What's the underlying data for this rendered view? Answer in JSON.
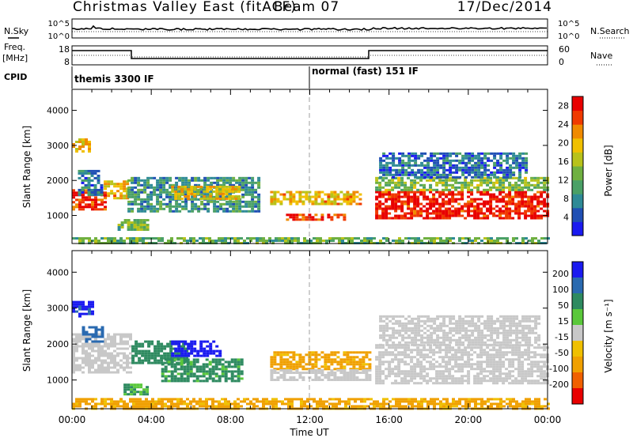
{
  "header": {
    "station": "Christmas Valley East (fitACF)",
    "beam": "Beam 07",
    "date": "17/Dec/2014"
  },
  "strips": {
    "nsky_label": "N.Sky",
    "nsearch_label": "N.Search",
    "freq_label_1": "Freq.",
    "freq_label_2": "[MHz]",
    "nave_label": "Nave",
    "cpid_label": "CPID",
    "noise_ticks": [
      "10^5",
      "10^0"
    ],
    "freq_ticks": [
      "18",
      "8"
    ],
    "nave_ticks": [
      "60",
      "0"
    ],
    "cpid_segments": [
      {
        "label": "themis 3300 IF",
        "start_hour": 0
      },
      {
        "label": "normal (fast) 151 IF",
        "start_hour": 12
      }
    ]
  },
  "chart_data": [
    {
      "type": "heatmap",
      "panel": "power",
      "xlabel": "",
      "ylabel": "Slant Range [km]",
      "xlim": [
        0,
        24
      ],
      "ylim": [
        200,
        4600
      ],
      "yticks": [
        1000,
        2000,
        3000,
        4000
      ],
      "colorbar": {
        "label": "Power [dB]",
        "ticks": [
          4,
          8,
          12,
          16,
          20,
          24,
          28
        ],
        "range": [
          0,
          30
        ],
        "colors": [
          "#1a1af0",
          "#1f4fb4",
          "#2e8a96",
          "#4aa066",
          "#6fb040",
          "#b8c21a",
          "#f0c000",
          "#f08a00",
          "#f03a00",
          "#e80000"
        ]
      },
      "regions": [
        {
          "t0": 0.0,
          "t1": 1.6,
          "r0": 1150,
          "r1": 1750,
          "v": 27
        },
        {
          "t0": 1.6,
          "t1": 2.8,
          "r0": 1500,
          "r1": 2000,
          "v": 20
        },
        {
          "t0": 0.3,
          "t1": 1.5,
          "r0": 1600,
          "r1": 2300,
          "v": 7
        },
        {
          "t0": 2.8,
          "t1": 9.5,
          "r0": 1100,
          "r1": 2100,
          "v": 9
        },
        {
          "t0": 5.0,
          "t1": 8.5,
          "r0": 1450,
          "r1": 1850,
          "v": 19
        },
        {
          "t0": 2.3,
          "t1": 3.8,
          "r0": 600,
          "r1": 900,
          "v": 13
        },
        {
          "t0": 0.0,
          "t1": 0.8,
          "r0": 2800,
          "r1": 3200,
          "v": 19
        },
        {
          "t0": 10.0,
          "t1": 14.5,
          "r0": 1300,
          "r1": 1700,
          "v": 20
        },
        {
          "t0": 10.8,
          "t1": 13.8,
          "r0": 850,
          "r1": 1050,
          "v": 26
        },
        {
          "t0": 15.3,
          "t1": 24.0,
          "r0": 950,
          "r1": 1700,
          "v": 28
        },
        {
          "t0": 15.3,
          "t1": 24.0,
          "r0": 1700,
          "r1": 2100,
          "v": 14
        },
        {
          "t0": 15.5,
          "t1": 23.0,
          "r0": 2100,
          "r1": 2800,
          "v": 6
        },
        {
          "t0": 0.0,
          "t1": 24.0,
          "r0": 220,
          "r1": 380,
          "v": 12
        }
      ]
    },
    {
      "type": "heatmap",
      "panel": "velocity",
      "xlabel": "Time UT",
      "ylabel": "Slant Range [km]",
      "xlim": [
        0,
        24
      ],
      "ylim": [
        200,
        4600
      ],
      "xticks": [
        "00:00",
        "04:00",
        "08:00",
        "12:00",
        "16:00",
        "20:00",
        "00:00"
      ],
      "yticks": [
        1000,
        2000,
        3000,
        4000
      ],
      "colorbar": {
        "label": "Velocity [m s⁻¹]",
        "ticks": [
          200,
          100,
          50,
          15,
          -15,
          -50,
          -100,
          -200
        ],
        "bins": [
          {
            "min": 150,
            "color": "#1a1af0"
          },
          {
            "min": 75,
            "color": "#2a6ab0"
          },
          {
            "min": 30,
            "color": "#2e8a60"
          },
          {
            "min": 15,
            "color": "#5ac83a"
          },
          {
            "min": -15,
            "color": "#c8c8c8"
          },
          {
            "min": -30,
            "color": "#f0c000"
          },
          {
            "min": -75,
            "color": "#f0a000"
          },
          {
            "min": -150,
            "color": "#f06000"
          },
          {
            "min": -9999,
            "color": "#e80000"
          }
        ]
      },
      "regions": [
        {
          "t0": 0.0,
          "t1": 1.0,
          "r0": 2800,
          "r1": 3200,
          "v": 160
        },
        {
          "t0": 0.0,
          "t1": 3.0,
          "r0": 1200,
          "r1": 2300,
          "v": 0
        },
        {
          "t0": 0.5,
          "t1": 1.6,
          "r0": 2100,
          "r1": 2500,
          "v": 120
        },
        {
          "t0": 3.0,
          "t1": 6.0,
          "r0": 1500,
          "r1": 2100,
          "v": 60
        },
        {
          "t0": 5.0,
          "t1": 7.5,
          "r0": 1700,
          "r1": 2100,
          "v": 170
        },
        {
          "t0": 4.5,
          "t1": 8.5,
          "r0": 1000,
          "r1": 1600,
          "v": 40
        },
        {
          "t0": 2.6,
          "t1": 3.8,
          "r0": 600,
          "r1": 900,
          "v": 30
        },
        {
          "t0": 10.0,
          "t1": 15.0,
          "r0": 1300,
          "r1": 1800,
          "v": -40
        },
        {
          "t0": 10.0,
          "t1": 15.0,
          "r0": 1000,
          "r1": 1300,
          "v": 0
        },
        {
          "t0": 15.3,
          "t1": 24.0,
          "r0": 900,
          "r1": 2000,
          "v": 0
        },
        {
          "t0": 15.5,
          "t1": 23.5,
          "r0": 2000,
          "r1": 2800,
          "v": 0
        },
        {
          "t0": 0.0,
          "t1": 24.0,
          "r0": 220,
          "r1": 500,
          "v": -40
        }
      ]
    }
  ]
}
